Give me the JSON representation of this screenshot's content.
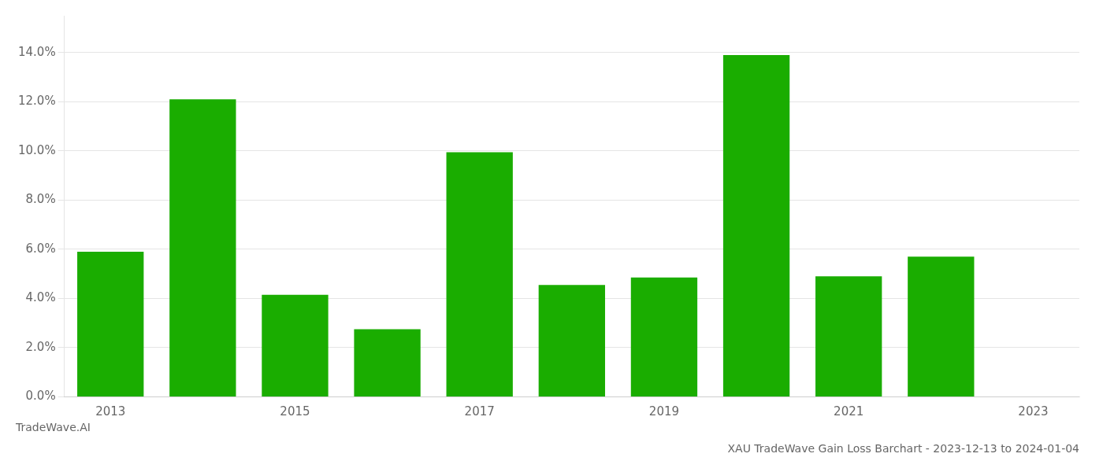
{
  "chart_data": {
    "type": "bar",
    "title": "XAU TradeWave Gain Loss Barchart - 2023-12-13 to 2024-01-04",
    "annotations": [
      "TradeWave.AI"
    ],
    "categories": [
      "2013",
      null,
      "2015",
      null,
      "2017",
      null,
      "2019",
      null,
      "2021",
      null,
      "2023"
    ],
    "values": [
      0.059,
      0.121,
      0.0415,
      0.0275,
      0.0995,
      0.0455,
      0.0485,
      0.139,
      0.049,
      0.057,
      0.0
    ],
    "color": "#1aad00",
    "ylim": [
      0,
      0.155
    ],
    "yticks": [
      {
        "value": 0.0,
        "label": "0.0%"
      },
      {
        "value": 0.02,
        "label": "2.0%"
      },
      {
        "value": 0.04,
        "label": "4.0%"
      },
      {
        "value": 0.06,
        "label": "6.0%"
      },
      {
        "value": 0.08,
        "label": "8.0%"
      },
      {
        "value": 0.1,
        "label": "10.0%"
      },
      {
        "value": 0.12,
        "label": "12.0%"
      },
      {
        "value": 0.14,
        "label": "14.0%"
      }
    ],
    "grid": true
  }
}
